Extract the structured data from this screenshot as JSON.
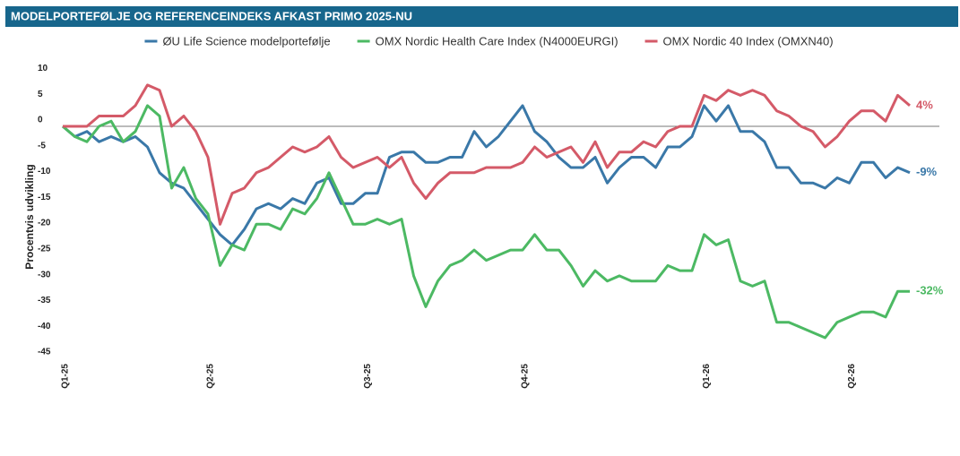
{
  "chart_data": {
    "type": "line",
    "title": "MODELPORTEFØLJE OG REFERENCEINDEKS AFKAST PRIMO 2025-NU",
    "y_label": "Procentvis udvikling",
    "legend_position": "top",
    "categories": [
      "Q1-25",
      null,
      null,
      null,
      null,
      null,
      null,
      null,
      null,
      null,
      null,
      null,
      "Q2-25",
      null,
      null,
      null,
      null,
      null,
      null,
      null,
      null,
      null,
      null,
      null,
      null,
      "Q3-25",
      null,
      null,
      null,
      null,
      null,
      null,
      null,
      null,
      null,
      null,
      null,
      null,
      "Q4-25",
      null,
      null,
      null,
      null,
      null,
      null,
      null,
      null,
      null,
      null,
      null,
      null,
      null,
      null,
      "Q1-26",
      null,
      null,
      null,
      null,
      null,
      null,
      null,
      null,
      null,
      null,
      null,
      "Q2-26",
      null,
      null,
      null,
      null,
      null
    ],
    "ylim": [
      -45,
      10
    ],
    "yticks": [
      10,
      5,
      0,
      -5,
      -10,
      -15,
      -20,
      -25,
      -30,
      -35,
      -40,
      -45
    ],
    "series": [
      {
        "name": "ØU Life Science modelportefølje",
        "color": "#3a78a8",
        "end_label": "-9%",
        "values": [
          0,
          -2,
          -1,
          -3,
          -2,
          -3,
          -2,
          -4,
          -9,
          -11,
          -12,
          -15,
          -18,
          -21,
          -23,
          -20,
          -16,
          -15,
          -16,
          -14,
          -15,
          -11,
          -10,
          -15,
          -15,
          -13,
          -13,
          -6,
          -5,
          -5,
          -7,
          -7,
          -6,
          -6,
          -1,
          -4,
          -2,
          1,
          4,
          -1,
          -3,
          -6,
          -8,
          -8,
          -6,
          -11,
          -8,
          -6,
          -6,
          -8,
          -4,
          -4,
          -2,
          4,
          1,
          4,
          -1,
          -1,
          -3,
          -8,
          -8,
          -11,
          -11,
          -12,
          -10,
          -11,
          -7,
          -7,
          -10,
          -8,
          -9
        ]
      },
      {
        "name": "OMX Nordic Health Care Index (N4000EURGI)",
        "color": "#4cb963",
        "end_label": "-32%",
        "values": [
          0,
          -2,
          -3,
          0,
          1,
          -3,
          -1,
          4,
          2,
          -12,
          -8,
          -14,
          -17,
          -27,
          -23,
          -24,
          -19,
          -19,
          -20,
          -16,
          -17,
          -14,
          -9,
          -14,
          -19,
          -19,
          -18,
          -19,
          -18,
          -29,
          -35,
          -30,
          -27,
          -26,
          -24,
          -26,
          -25,
          -24,
          -24,
          -21,
          -24,
          -24,
          -27,
          -31,
          -28,
          -30,
          -29,
          -30,
          -30,
          -30,
          -27,
          -28,
          -28,
          -21,
          -23,
          -22,
          -30,
          -31,
          -30,
          -38,
          -38,
          -39,
          -40,
          -41,
          -38,
          -37,
          -36,
          -36,
          -37,
          -32,
          -32
        ]
      },
      {
        "name": "OMX Nordic 40 Index (OMXN40)",
        "color": "#d45a68",
        "end_label": "4%",
        "values": [
          0,
          0,
          0,
          2,
          2,
          2,
          4,
          8,
          7,
          0,
          2,
          -1,
          -6,
          -19,
          -13,
          -12,
          -9,
          -8,
          -6,
          -4,
          -5,
          -4,
          -2,
          -6,
          -8,
          -7,
          -6,
          -8,
          -6,
          -11,
          -14,
          -11,
          -9,
          -9,
          -9,
          -8,
          -8,
          -8,
          -7,
          -4,
          -6,
          -5,
          -4,
          -7,
          -3,
          -8,
          -5,
          -5,
          -3,
          -4,
          -1,
          0,
          0,
          6,
          5,
          7,
          6,
          7,
          6,
          3,
          2,
          0,
          -1,
          -4,
          -2,
          1,
          3,
          3,
          1,
          6,
          4
        ]
      }
    ]
  }
}
